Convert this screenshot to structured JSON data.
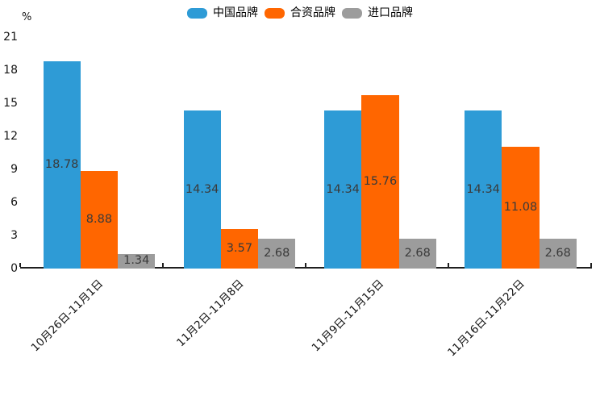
{
  "chart_data": {
    "type": "bar",
    "categories": [
      "10月26日-11月1日",
      "11月2日-11月8日",
      "11月9日-11月15日",
      "11月16日-11月22日"
    ],
    "series": [
      {
        "name": "中国品牌",
        "color": "#2E9BD6",
        "values": [
          18.78,
          14.34,
          14.34,
          14.34
        ]
      },
      {
        "name": "合资品牌",
        "color": "#FF6600",
        "values": [
          8.88,
          3.57,
          15.76,
          11.08
        ]
      },
      {
        "name": "进口品牌",
        "color": "#9C9C9C",
        "values": [
          1.34,
          2.68,
          2.68,
          2.68
        ]
      }
    ],
    "ylabel": "%",
    "yticks": [
      0,
      3,
      6,
      9,
      12,
      15,
      18,
      21
    ],
    "ylim": [
      0,
      21
    ],
    "grid": false,
    "legend_position": "top",
    "value_labels": "inside",
    "value_label_color": "#3A3A3A",
    "axis_color": "#1F1F1F",
    "xlabel_rotation": 45
  }
}
